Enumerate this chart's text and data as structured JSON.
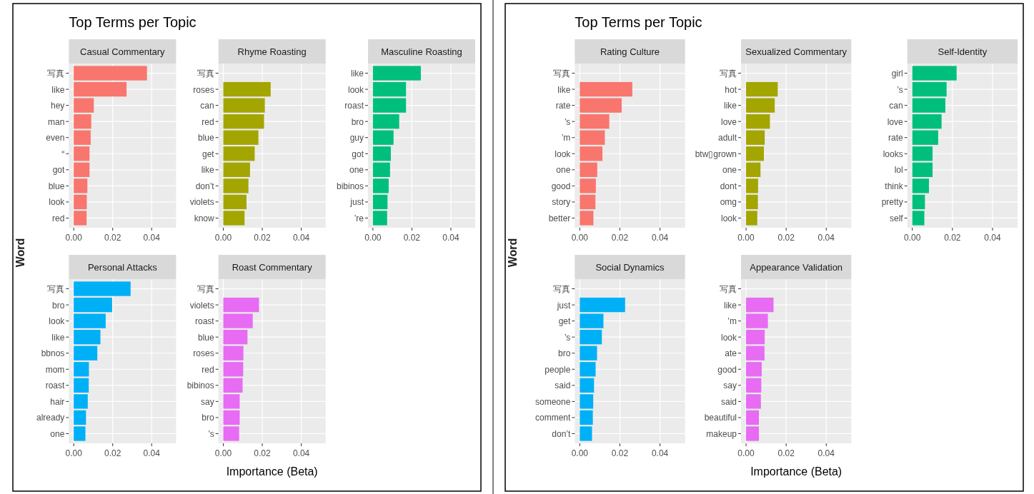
{
  "chart_data": [
    {
      "type": "bar",
      "orientation": "horizontal",
      "annotations": [
        "Top Terms per Topic"
      ],
      "ylabel": "Word",
      "title": "Casual Commentary",
      "categories": [
        "写真",
        "like",
        "hey",
        "man",
        "even",
        "“",
        "got",
        "blue",
        "look",
        "red"
      ],
      "values": [
        0.0376,
        0.0271,
        0.0103,
        0.009,
        0.0087,
        0.0081,
        0.0081,
        0.007,
        0.0067,
        0.0066
      ],
      "color": "#f8766d",
      "xlim": [
        -0.0025,
        0.0525
      ],
      "xticks": [
        {
          "value": 0,
          "label": "0.00"
        },
        {
          "value": 0.02,
          "label": "0.02"
        },
        {
          "value": 0.04,
          "label": "0.04"
        }
      ],
      "grid": true
    },
    {
      "type": "bar",
      "orientation": "horizontal",
      "title": "Rhyme Roasting",
      "categories": [
        "写真",
        "roses",
        "can",
        "red",
        "blue",
        "get",
        "like",
        "don’t",
        "violets",
        "know"
      ],
      "values": [
        null,
        0.0243,
        0.0213,
        0.0209,
        0.018,
        0.0161,
        0.0137,
        0.0129,
        0.0119,
        0.0109
      ],
      "color": "#a3a500",
      "xlim": [
        -0.0025,
        0.0525
      ],
      "xticks": [
        {
          "value": 0,
          "label": "0.00"
        },
        {
          "value": 0.02,
          "label": "0.02"
        },
        {
          "value": 0.04,
          "label": "0.04"
        }
      ],
      "grid": true
    },
    {
      "type": "bar",
      "orientation": "horizontal",
      "title": "Masculine Roasting",
      "categories": [
        "like",
        "look",
        "roast",
        "bro",
        "guy",
        "got",
        "one",
        "bibinos",
        "just",
        "’re"
      ],
      "values": [
        0.0246,
        0.017,
        0.017,
        0.0135,
        0.0106,
        0.0092,
        0.0088,
        0.0081,
        0.0075,
        0.0073
      ],
      "color": "#00bf7d",
      "xlim": [
        -0.0025,
        0.0525
      ],
      "xticks": [
        {
          "value": 0,
          "label": "0.00"
        },
        {
          "value": 0.02,
          "label": "0.02"
        },
        {
          "value": 0.04,
          "label": "0.04"
        }
      ],
      "grid": true
    },
    {
      "type": "bar",
      "orientation": "horizontal",
      "title": "Personal Attacks",
      "categories": [
        "写真",
        "bro",
        "look",
        "like",
        "bbnos",
        "mom",
        "roast",
        "hair",
        "already",
        "one"
      ],
      "values": [
        0.0292,
        0.0197,
        0.0164,
        0.0137,
        0.0121,
        0.0078,
        0.0077,
        0.0072,
        0.0063,
        0.006
      ],
      "color": "#00b0f6",
      "xlim": [
        -0.0025,
        0.0525
      ],
      "xticks": [
        {
          "value": 0,
          "label": "0.00"
        },
        {
          "value": 0.02,
          "label": "0.02"
        },
        {
          "value": 0.04,
          "label": "0.04"
        }
      ],
      "grid": true
    },
    {
      "type": "bar",
      "orientation": "horizontal",
      "title": "Roast Commentary",
      "xlabel": "Importance (Beta)",
      "categories": [
        "写真",
        "violets",
        "roast",
        "blue",
        "roses",
        "red",
        "bibinos",
        "say",
        "bro",
        "’s"
      ],
      "values": [
        null,
        0.0183,
        0.0151,
        0.0124,
        0.0103,
        0.0102,
        0.0099,
        0.0084,
        0.0084,
        0.0081
      ],
      "color": "#e76bf3",
      "xlim": [
        -0.0025,
        0.0525
      ],
      "xticks": [
        {
          "value": 0,
          "label": "0.00"
        },
        {
          "value": 0.02,
          "label": "0.02"
        },
        {
          "value": 0.04,
          "label": "0.04"
        }
      ],
      "grid": true
    },
    {
      "type": "bar",
      "orientation": "horizontal",
      "annotations": [
        "Top Terms per Topic"
      ],
      "ylabel": "Word",
      "title": "Rating Culture",
      "categories": [
        "写真",
        "like",
        "rate",
        "’s",
        "’m",
        "look",
        "one",
        "good",
        "story",
        "better"
      ],
      "values": [
        null,
        0.0262,
        0.0209,
        0.0147,
        0.0125,
        0.0113,
        0.0087,
        0.008,
        0.0078,
        0.0068
      ],
      "color": "#f8766d",
      "xlim": [
        -0.0025,
        0.0525
      ],
      "xticks": [
        {
          "value": 0,
          "label": "0.00"
        },
        {
          "value": 0.02,
          "label": "0.02"
        },
        {
          "value": 0.04,
          "label": "0.04"
        }
      ],
      "grid": true
    },
    {
      "type": "bar",
      "orientation": "horizontal",
      "title": "Sexualized Commentary",
      "categories": [
        "写真",
        "hot",
        "like",
        "love",
        "adult",
        "btw▯grown",
        "one",
        "dont",
        "omg",
        "look"
      ],
      "values": [
        null,
        0.0158,
        0.0143,
        0.0119,
        0.0093,
        0.0089,
        0.0072,
        0.006,
        0.0059,
        0.0056
      ],
      "color": "#a3a500",
      "xlim": [
        -0.0025,
        0.0525
      ],
      "xticks": [
        {
          "value": 0,
          "label": "0.00"
        },
        {
          "value": 0.02,
          "label": "0.02"
        },
        {
          "value": 0.04,
          "label": "0.04"
        }
      ],
      "grid": true
    },
    {
      "type": "bar",
      "orientation": "horizontal",
      "title": "Self-Identity",
      "categories": [
        "girl",
        "’s",
        "can",
        "love",
        "rate",
        "looks",
        "lol",
        "think",
        "pretty",
        "self"
      ],
      "values": [
        0.0221,
        0.0171,
        0.0165,
        0.0146,
        0.0129,
        0.0101,
        0.0101,
        0.0083,
        0.0063,
        0.006
      ],
      "color": "#00bf7d",
      "xlim": [
        -0.0025,
        0.0525
      ],
      "xticks": [
        {
          "value": 0,
          "label": "0.00"
        },
        {
          "value": 0.02,
          "label": "0.02"
        },
        {
          "value": 0.04,
          "label": "0.04"
        }
      ],
      "grid": true
    },
    {
      "type": "bar",
      "orientation": "horizontal",
      "title": "Social Dynamics",
      "categories": [
        "写真",
        "just",
        "get",
        "’s",
        "bro",
        "people",
        "said",
        "someone",
        "comment",
        "don’t"
      ],
      "values": [
        null,
        0.0226,
        0.0118,
        0.011,
        0.0086,
        0.0079,
        0.0071,
        0.0067,
        0.0065,
        0.0061
      ],
      "color": "#00b0f6",
      "xlim": [
        -0.0025,
        0.0525
      ],
      "xticks": [
        {
          "value": 0,
          "label": "0.00"
        },
        {
          "value": 0.02,
          "label": "0.02"
        },
        {
          "value": 0.04,
          "label": "0.04"
        }
      ],
      "grid": true
    },
    {
      "type": "bar",
      "orientation": "horizontal",
      "title": "Appearance Validation",
      "xlabel": "Importance (Beta)",
      "categories": [
        "写真",
        "like",
        "’m",
        "look",
        "ate",
        "good",
        "say",
        "said",
        "beautiful",
        "makeup"
      ],
      "values": [
        null,
        0.0137,
        0.0109,
        0.0093,
        0.0092,
        0.0078,
        0.0076,
        0.0074,
        0.0064,
        0.0064
      ],
      "color": "#e76bf3",
      "xlim": [
        -0.0025,
        0.0525
      ],
      "xticks": [
        {
          "value": 0,
          "label": "0.00"
        },
        {
          "value": 0.02,
          "label": "0.02"
        },
        {
          "value": 0.04,
          "label": "0.04"
        }
      ],
      "grid": true
    }
  ]
}
